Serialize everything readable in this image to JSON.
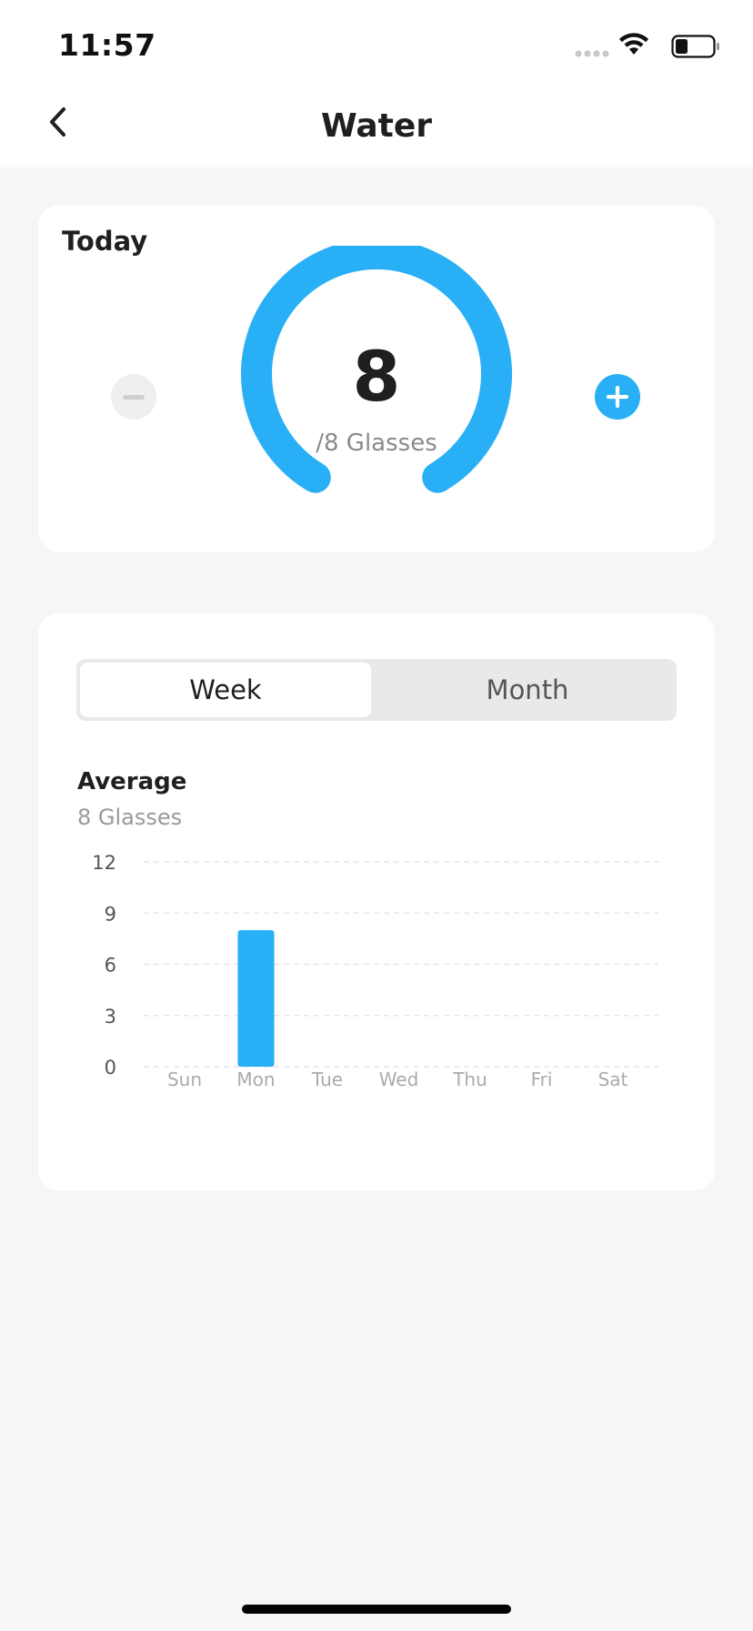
{
  "status_bar": {
    "time": "11:57"
  },
  "nav": {
    "title": "Water"
  },
  "today": {
    "label": "Today",
    "value": "8",
    "unit": "/8 Glasses",
    "progress_fraction": 1.0,
    "accent": "#29aff5"
  },
  "stats": {
    "tabs": [
      {
        "label": "Week",
        "selected": true
      },
      {
        "label": "Month",
        "selected": false
      }
    ],
    "average_title": "Average",
    "average_value": "8 Glasses"
  },
  "chart_data": {
    "type": "bar",
    "categories": [
      "Sun",
      "Mon",
      "Tue",
      "Wed",
      "Thu",
      "Fri",
      "Sat"
    ],
    "values": [
      0,
      8,
      0,
      0,
      0,
      0,
      0
    ],
    "yticks": [
      0,
      3,
      6,
      9,
      12
    ],
    "ylim": [
      0,
      12
    ],
    "grid": true,
    "bar_color": "#29aff5"
  }
}
